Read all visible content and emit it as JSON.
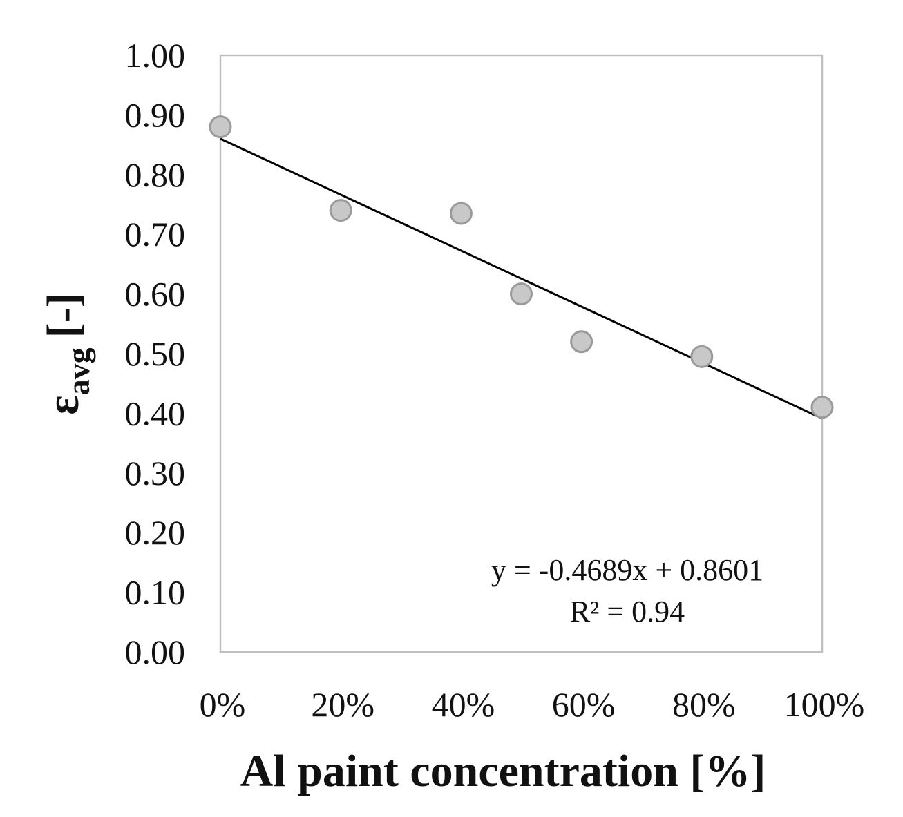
{
  "chart_data": {
    "type": "scatter",
    "xlabel": "Al paint concentration [%]",
    "ylabel": {
      "symbol": "ε",
      "subscript": "avg",
      "unit": "[-]"
    },
    "x_ticks": [
      "0%",
      "20%",
      "40%",
      "60%",
      "80%",
      "100%"
    ],
    "y_ticks": [
      "0.00",
      "0.10",
      "0.20",
      "0.30",
      "0.40",
      "0.50",
      "0.60",
      "0.70",
      "0.80",
      "0.90",
      "1.00"
    ],
    "xlim": [
      0,
      1
    ],
    "ylim": [
      0,
      1
    ],
    "grid": false,
    "series": [
      {
        "points": [
          {
            "x": 0.0,
            "y": 0.88
          },
          {
            "x": 0.2,
            "y": 0.74
          },
          {
            "x": 0.4,
            "y": 0.735
          },
          {
            "x": 0.5,
            "y": 0.6
          },
          {
            "x": 0.6,
            "y": 0.52
          },
          {
            "x": 0.8,
            "y": 0.495
          },
          {
            "x": 1.0,
            "y": 0.41
          }
        ],
        "marker_fill": "#c8c8c8",
        "marker_stroke": "#9a9a9a"
      }
    ],
    "trendline": {
      "slope": -0.4689,
      "intercept": 0.8601,
      "color": "#000000"
    },
    "annotations": {
      "equation": "y = -0.4689x + 0.8601",
      "r_squared": "R² = 0.94"
    },
    "plot_border_color": "#c0c0c0"
  }
}
